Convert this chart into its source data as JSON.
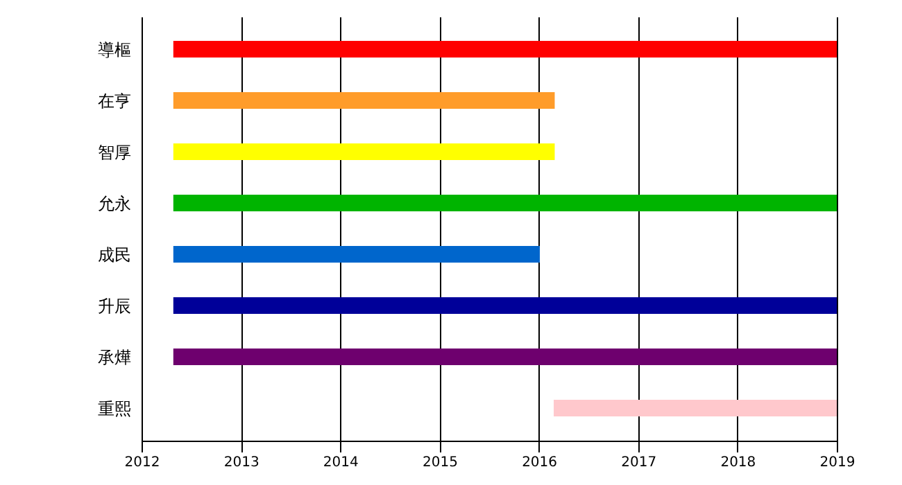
{
  "chart_data": {
    "type": "bar",
    "orientation": "horizontal",
    "categories": [
      "導樞",
      "在亨",
      "智厚",
      "允永",
      "成民",
      "升辰",
      "承燁",
      "重熙"
    ],
    "base": [
      2012.32,
      2012.32,
      2012.32,
      2012.32,
      2012.32,
      2012.32,
      2012.32,
      2016.15
    ],
    "values": [
      6.68,
      3.84,
      3.84,
      6.68,
      3.69,
      6.68,
      6.68,
      2.85
    ],
    "colors": [
      "#ff0000",
      "#ff9c2a",
      "#ffff00",
      "#00b400",
      "#0066cc",
      "#000099",
      "#6e006e",
      "#ffc8cc"
    ],
    "xlim": [
      2012,
      2019
    ],
    "xticks": [
      2012,
      2013,
      2014,
      2015,
      2016,
      2017,
      2018,
      2019
    ],
    "grid": "x"
  }
}
